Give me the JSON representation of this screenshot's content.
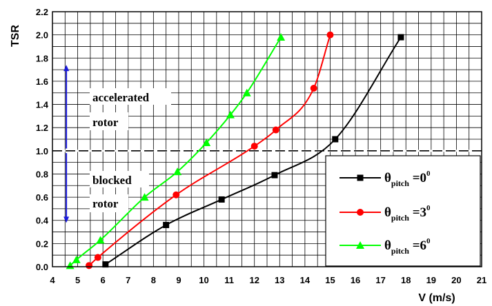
{
  "chart_data": {
    "type": "line",
    "title": "",
    "xlabel": "V (m/s)",
    "ylabel": "TSR",
    "xlim": [
      4,
      21
    ],
    "ylim": [
      0,
      2.2
    ],
    "xticks": [
      4,
      5,
      6,
      7,
      8,
      9,
      10,
      11,
      12,
      13,
      14,
      15,
      16,
      17,
      18,
      19,
      20,
      21
    ],
    "yticks": [
      "0.0",
      "0.2",
      "0.4",
      "0.6",
      "0.8",
      "1.0",
      "1.2",
      "1.4",
      "1.6",
      "1.8",
      "2.0",
      "2.2"
    ],
    "grid": true,
    "legend_position": "bottom-right",
    "reference_line": {
      "y": 1.0,
      "style": "dashed"
    },
    "annotations": {
      "upper_line1": "accelerated",
      "upper_line2": "rotor",
      "lower_line1": "blocked",
      "lower_line2": "rotor",
      "arrow_color": "#1a1adb"
    },
    "series": [
      {
        "name": "θpitch =0⁰",
        "legend": {
          "theta": "θ",
          "sub": "pitch",
          "eq": " =0",
          "sup": "0"
        },
        "color": "#000000",
        "marker": "square",
        "x": [
          6.1,
          8.5,
          10.7,
          12.8,
          15.2,
          17.8
        ],
        "y": [
          0.02,
          0.36,
          0.58,
          0.79,
          1.1,
          1.98
        ]
      },
      {
        "name": "θpitch =3⁰",
        "legend": {
          "theta": "θ",
          "sub": "pitch",
          "eq": " =3",
          "sup": "0"
        },
        "color": "#ff0000",
        "marker": "circle",
        "x": [
          5.45,
          5.8,
          8.9,
          12.0,
          12.85,
          14.35,
          15.0
        ],
        "y": [
          0.01,
          0.08,
          0.62,
          1.04,
          1.18,
          1.54,
          2.0
        ]
      },
      {
        "name": "θpitch =6⁰",
        "legend": {
          "theta": "θ",
          "sub": "pitch",
          "eq": " =6",
          "sup": "0"
        },
        "color": "#00ff00",
        "marker": "triangle",
        "x": [
          4.7,
          4.95,
          5.9,
          7.65,
          8.95,
          10.1,
          11.05,
          11.7,
          13.05
        ],
        "y": [
          0.01,
          0.06,
          0.23,
          0.6,
          0.82,
          1.07,
          1.31,
          1.5,
          1.98
        ]
      }
    ]
  }
}
